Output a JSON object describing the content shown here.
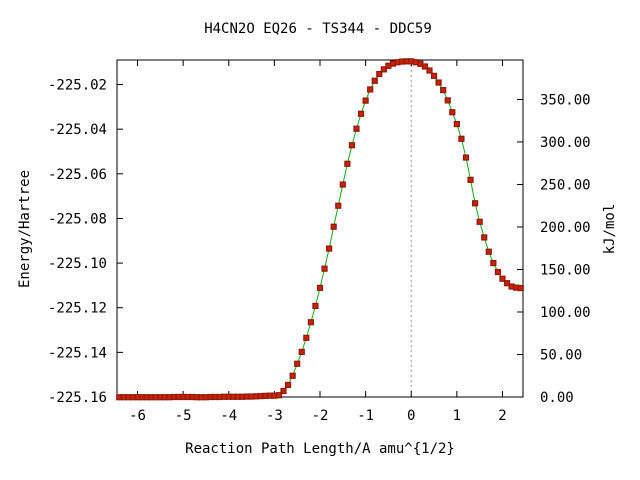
{
  "chart_data": {
    "type": "line",
    "title": "H4CN2O   EQ26 - TS344 - DDC59",
    "xlabel": "Reaction Path Length/A amu^{1/2}",
    "ylabel_left": "Energy/Hartree",
    "ylabel_right": "kJ/mol",
    "xlim": [
      -6.45,
      2.45
    ],
    "ylim_left": [
      -225.16,
      -225.009
    ],
    "ylim_right": [
      0,
      396.4
    ],
    "x_ticks": [
      -6,
      -5,
      -4,
      -3,
      -2,
      -1,
      0,
      1,
      2
    ],
    "x_tick_labels": [
      "-6",
      "-5",
      "-4",
      "-3",
      "-2",
      "-1",
      "0",
      "1",
      "2"
    ],
    "y_left_ticks": [
      -225.16,
      -225.14,
      -225.12,
      -225.1,
      -225.08,
      -225.06,
      -225.04,
      -225.02
    ],
    "y_left_tick_labels": [
      "-225.16",
      "-225.14",
      "-225.12",
      "-225.10",
      "-225.08",
      "-225.06",
      "-225.04",
      "-225.02"
    ],
    "y_right_ticks": [
      0,
      50,
      100,
      150,
      200,
      250,
      300,
      350
    ],
    "y_right_tick_labels": [
      "0.00",
      "50.00",
      "100.00",
      "150.00",
      "200.00",
      "250.00",
      "300.00",
      "350.00"
    ],
    "transition_state_x": 0,
    "colors": {
      "curve": "#11aa11",
      "points": "#cc2200",
      "points_edge": "#8b1a10",
      "ts_marker": "#999999"
    },
    "series": [
      {
        "x": [
          -6.4,
          -6.3,
          -6.2,
          -6.1,
          -6.0,
          -5.9,
          -5.8,
          -5.7,
          -5.6,
          -5.5,
          -5.4,
          -5.3,
          -5.2,
          -5.1,
          -5.0,
          -4.9,
          -4.8,
          -4.7,
          -4.6,
          -4.5,
          -4.4,
          -4.3,
          -4.2,
          -4.1,
          -4.0,
          -3.9,
          -3.8,
          -3.7,
          -3.6,
          -3.5,
          -3.4,
          -3.3,
          -3.2,
          -3.1,
          -3.0,
          -2.9,
          -2.8,
          -2.7,
          -2.6,
          -2.5,
          -2.4,
          -2.3,
          -2.2,
          -2.1,
          -2.0,
          -1.9,
          -1.8,
          -1.7,
          -1.6,
          -1.5,
          -1.4,
          -1.3,
          -1.2,
          -1.1,
          -1.0,
          -0.9,
          -0.8,
          -0.7,
          -0.6,
          -0.5,
          -0.4,
          -0.3,
          -0.2,
          -0.1,
          0.0,
          0.1,
          0.2,
          0.3,
          0.4,
          0.5,
          0.6,
          0.7,
          0.8,
          0.9,
          1.0,
          1.1,
          1.2,
          1.3,
          1.4,
          1.5,
          1.6,
          1.7,
          1.8,
          1.9,
          2.0,
          2.1,
          2.2,
          2.3,
          2.4
        ],
        "y": [
          -225.1601,
          -225.1601,
          -225.1601,
          -225.1601,
          -225.1601,
          -225.1601,
          -225.1601,
          -225.1601,
          -225.1601,
          -225.1601,
          -225.1601,
          -225.1601,
          -225.16,
          -225.16,
          -225.16,
          -225.16,
          -225.16,
          -225.1601,
          -225.1601,
          -225.1601,
          -225.16,
          -225.16,
          -225.16,
          -225.1599,
          -225.1599,
          -225.1599,
          -225.1599,
          -225.1599,
          -225.1598,
          -225.1598,
          -225.1597,
          -225.1596,
          -225.1595,
          -225.1594,
          -225.1594,
          -225.1592,
          -225.1573,
          -225.1546,
          -225.1505,
          -225.1451,
          -225.1398,
          -225.1335,
          -225.1265,
          -225.1192,
          -225.1111,
          -225.1025,
          -225.0935,
          -225.0837,
          -225.0743,
          -225.0648,
          -225.0555,
          -225.0472,
          -225.0398,
          -225.0331,
          -225.0272,
          -225.0222,
          -225.0183,
          -225.0153,
          -225.0132,
          -225.0116,
          -225.0106,
          -225.01,
          -225.0097,
          -225.0096,
          -225.0096,
          -225.01,
          -225.0107,
          -225.0119,
          -225.0137,
          -225.0161,
          -225.0191,
          -225.0225,
          -225.0271,
          -225.0324,
          -225.0377,
          -225.0443,
          -225.0527,
          -225.0627,
          -225.0732,
          -225.0815,
          -225.0885,
          -225.0949,
          -225.1,
          -225.104,
          -225.107,
          -225.109,
          -225.1105,
          -225.111,
          -225.1112
        ]
      }
    ]
  }
}
